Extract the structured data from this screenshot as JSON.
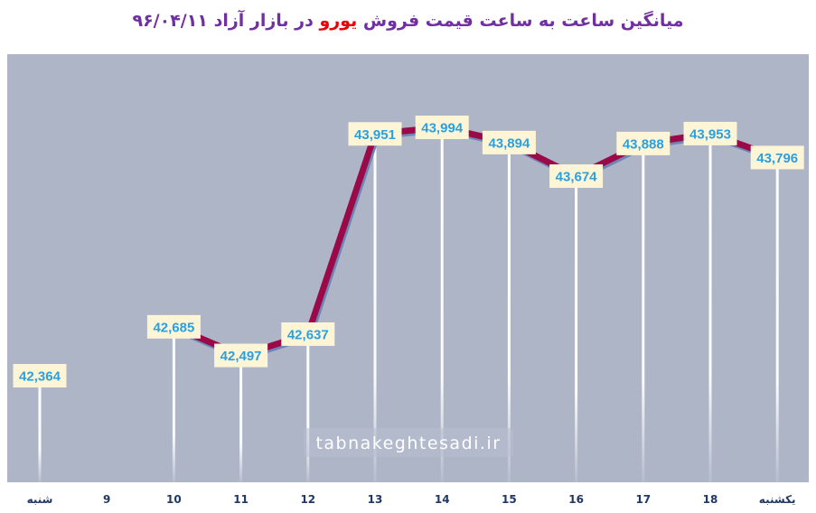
{
  "title": {
    "before": "میانگین ساعت به ساعت قیمت فروش",
    "highlight": "یورو",
    "after": "در بازار آزاد ۹۶/۰۴/۱۱"
  },
  "watermark": "tabnakeghtesadi.ir",
  "colors": {
    "plot_bg": "#adb5c7",
    "line": "#9b0a48",
    "line_shadow": "#6d86b6",
    "label_bg": "#fdf5d5",
    "label_text": "#2aa0e0",
    "title": "#7030a0",
    "title_highlight": "#e8000b",
    "category_text": "#1f3864"
  },
  "chart_data": {
    "type": "line",
    "categories": [
      "شنبه",
      "9",
      "10",
      "11",
      "12",
      "13",
      "14",
      "15",
      "16",
      "17",
      "18",
      "یکشنبه"
    ],
    "values": [
      42364,
      null,
      42685,
      42497,
      42637,
      43951,
      43994,
      43894,
      43674,
      43888,
      43953,
      43796
    ],
    "value_labels": [
      "42,364",
      "",
      "42,685",
      "42,497",
      "42,637",
      "43,951",
      "43,994",
      "43,894",
      "43,674",
      "43,888",
      "43,953",
      "43,796"
    ],
    "title": "میانگین ساعت به ساعت قیمت فروش یورو در بازار آزاد ۹۶/۰۴/۱۱",
    "xlabel": "",
    "ylabel": "",
    "grid": false,
    "legend": "none",
    "line_segments": [
      [
        2,
        11
      ]
    ],
    "drop_lines": true
  }
}
